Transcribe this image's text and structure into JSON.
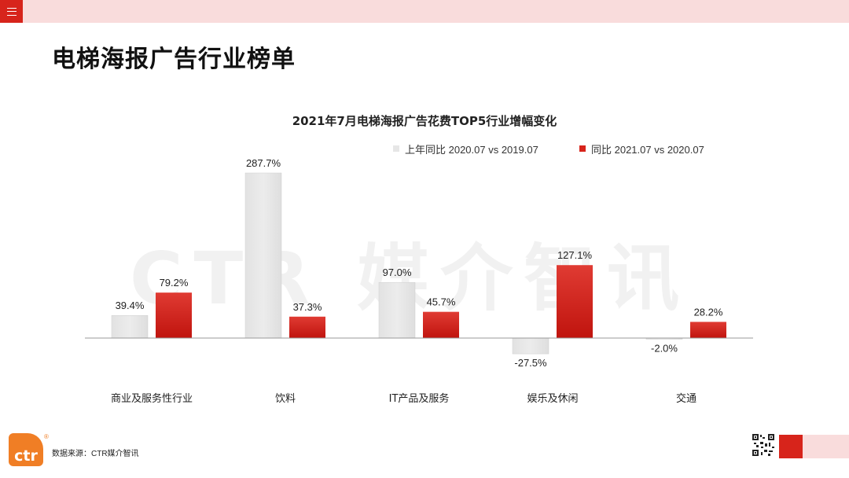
{
  "header": {
    "menu_icon": "hamburger-menu-icon"
  },
  "page": {
    "title": "电梯海报广告行业榜单"
  },
  "watermark": "CTR 媒介智讯",
  "chart_data": {
    "type": "bar",
    "title": "2021年7月电梯海报广告花费TOP5行业增幅变化",
    "categories": [
      "商业及服务性行业",
      "饮料",
      "IT产品及服务",
      "娱乐及休闲",
      "交通"
    ],
    "series": [
      {
        "name": "上年同比 2020.07 vs 2019.07",
        "color": "#e6e6e6",
        "values": [
          39.4,
          287.7,
          97.0,
          -27.5,
          -2.0
        ],
        "labels": [
          "39.4%",
          "287.7%",
          "97.0%",
          "-27.5%",
          "-2.0%"
        ]
      },
      {
        "name": "同比 2021.07 vs 2020.07",
        "color": "#d7241b",
        "values": [
          79.2,
          37.3,
          45.7,
          127.1,
          28.2
        ],
        "labels": [
          "79.2%",
          "37.3%",
          "45.7%",
          "127.1%",
          "28.2%"
        ]
      }
    ],
    "legend_position": "top-right",
    "grid": false,
    "ylim": [
      -40,
      300
    ]
  },
  "footer": {
    "logo_text": "ctr",
    "registered_mark": "®",
    "source": "数据来源：CTR媒介智讯",
    "qr_icon": "qr-code-icon"
  }
}
